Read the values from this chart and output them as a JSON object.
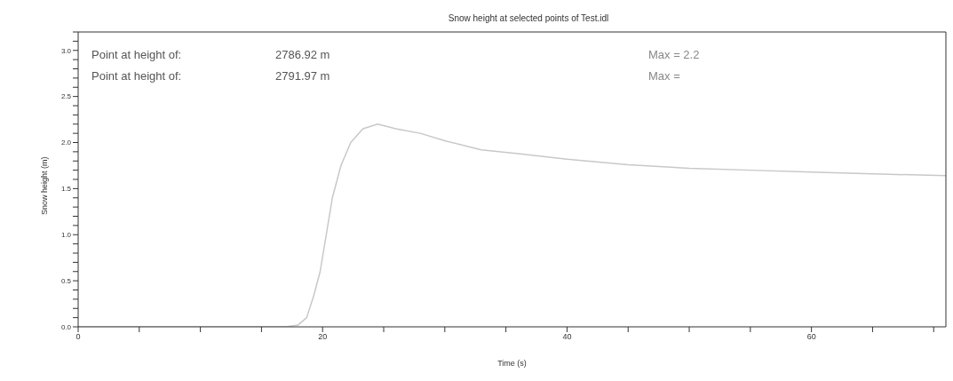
{
  "chart_data": {
    "type": "line",
    "title": "Snow height at selected points of Test.idl",
    "xlabel": "Time (s)",
    "ylabel": "Snow height (m)",
    "annotations": [
      "Point at height of:",
      "2786.92 m",
      "Max = 2.2",
      "Point at height of:",
      "2791.97 m",
      "Max ="
    ],
    "xlim": [
      0,
      71
    ],
    "ylim": [
      0,
      3.2
    ],
    "xticks": [
      0,
      {
        "value": 5,
        "label": null
      },
      {
        "value": 10,
        "label": null
      },
      {
        "value": 15,
        "label": null
      },
      20,
      {
        "value": 25,
        "label": null
      },
      {
        "value": 30,
        "label": null
      },
      {
        "value": 35,
        "label": null
      },
      40,
      {
        "value": 45,
        "label": null
      },
      {
        "value": 50,
        "label": null
      },
      {
        "value": 55,
        "label": null
      },
      60,
      {
        "value": 65,
        "label": null
      },
      {
        "value": 70,
        "label": null
      }
    ],
    "yticks": [
      {
        "value": 0,
        "label": "0.0"
      },
      {
        "value": 0.1,
        "label": null
      },
      {
        "value": 0.2,
        "label": null
      },
      {
        "value": 0.3,
        "label": null
      },
      {
        "value": 0.4,
        "label": null
      },
      {
        "value": 0.5,
        "label": "0.5"
      },
      {
        "value": 0.6,
        "label": null
      },
      {
        "value": 0.7,
        "label": null
      },
      {
        "value": 0.8,
        "label": null
      },
      {
        "value": 0.9,
        "label": null
      },
      {
        "value": 1,
        "label": "1.0"
      },
      {
        "value": 1.1,
        "label": null
      },
      {
        "value": 1.2,
        "label": null
      },
      {
        "value": 1.3,
        "label": null
      },
      {
        "value": 1.4,
        "label": null
      },
      {
        "value": 1.5,
        "label": "1.5"
      },
      {
        "value": 1.6,
        "label": null
      },
      {
        "value": 1.7,
        "label": null
      },
      {
        "value": 1.8,
        "label": null
      },
      {
        "value": 1.9,
        "label": null
      },
      {
        "value": 2,
        "label": "2.0"
      },
      {
        "value": 2.1,
        "label": null
      },
      {
        "value": 2.2,
        "label": null
      },
      {
        "value": 2.3,
        "label": null
      },
      {
        "value": 2.4,
        "label": null
      },
      {
        "value": 2.5,
        "label": "2.5"
      },
      {
        "value": 2.6,
        "label": null
      },
      {
        "value": 2.7,
        "label": null
      },
      {
        "value": 2.8,
        "label": null
      },
      {
        "value": 2.9,
        "label": null
      },
      {
        "value": 3,
        "label": "3.0"
      },
      {
        "value": 3.1,
        "label": null
      },
      {
        "value": 3.2,
        "label": null
      }
    ],
    "grid": false,
    "legend": false,
    "marker": "none",
    "line_style": "solid",
    "series": [
      {
        "color": "#c8c8c8",
        "x": [
          0,
          17,
          18,
          18.7,
          19.3,
          19.8,
          20.3,
          20.8,
          21.5,
          22.3,
          23.3,
          24.5,
          26,
          28,
          30,
          33,
          36,
          40,
          45,
          50,
          55,
          60,
          65,
          71
        ],
        "values": [
          0,
          0,
          0.02,
          0.1,
          0.35,
          0.6,
          1.0,
          1.4,
          1.75,
          2.0,
          2.15,
          2.2,
          2.15,
          2.1,
          2.02,
          1.92,
          1.88,
          1.82,
          1.76,
          1.72,
          1.7,
          1.68,
          1.66,
          1.64
        ]
      }
    ]
  }
}
